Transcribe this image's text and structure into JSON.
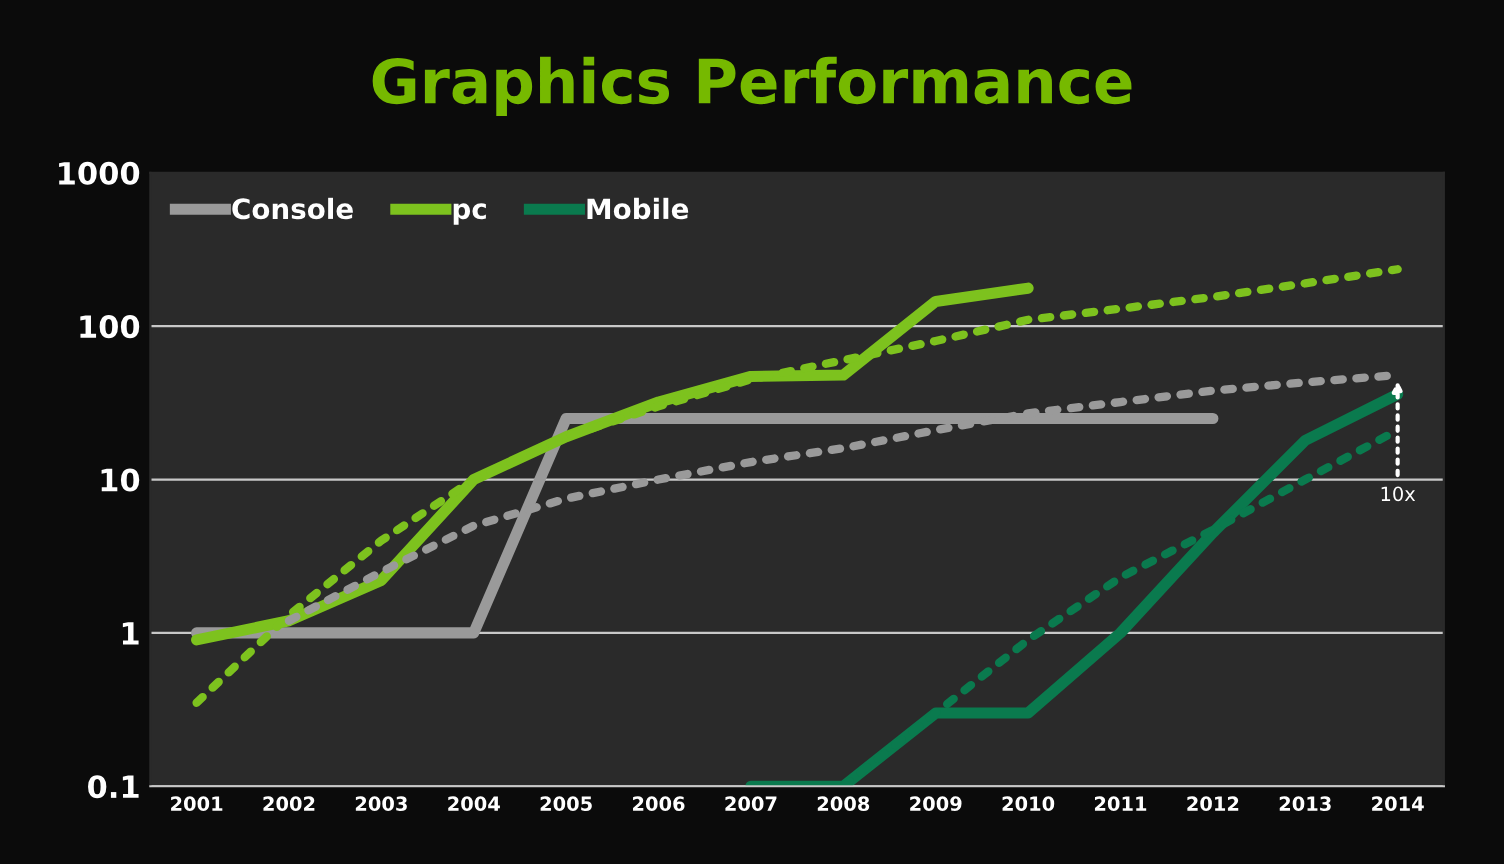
{
  "chart_data": {
    "type": "line",
    "title": "Graphics Performance",
    "categories": [
      "2001",
      "2002",
      "2003",
      "2004",
      "2005",
      "2006",
      "2007",
      "2008",
      "2009",
      "2010",
      "2011",
      "2012",
      "2013",
      "2014"
    ],
    "series": [
      {
        "name": "Console",
        "color": "#9a9a9a",
        "values": [
          1,
          1,
          1,
          1,
          25,
          25,
          25,
          25,
          25,
          25,
          25,
          25,
          null,
          null
        ]
      },
      {
        "name": "pc",
        "color": "#7dc21e",
        "values": [
          0.9,
          1.2,
          2.2,
          10,
          19,
          32,
          47,
          48,
          145,
          177,
          null,
          null,
          null,
          null
        ]
      },
      {
        "name": "Mobile",
        "color": "#0a7a4e",
        "values": [
          null,
          null,
          null,
          null,
          null,
          null,
          0.1,
          0.1,
          0.3,
          0.3,
          1,
          4.5,
          18,
          36
        ]
      },
      {
        "color": "#7dc21e",
        "line_style": "dotted",
        "values": [
          0.35,
          1.3,
          4,
          10,
          19,
          30,
          45,
          60,
          80,
          110,
          130,
          155,
          190,
          235
        ]
      },
      {
        "color": "#9a9a9a",
        "line_style": "dotted",
        "values": [
          null,
          1.2,
          2.5,
          5,
          7.5,
          10,
          13,
          16,
          21,
          27,
          32,
          38,
          43,
          48
        ]
      },
      {
        "color": "#0a7a4e",
        "line_style": "dotted",
        "values": [
          null,
          null,
          null,
          null,
          null,
          null,
          null,
          0.1,
          0.3,
          0.9,
          2.3,
          4.7,
          10,
          21
        ]
      }
    ],
    "ylim": [
      0.1,
      1000
    ],
    "yticks": [
      0.1,
      1,
      10,
      100,
      1000
    ],
    "log": true,
    "grid": "y",
    "legend": "top left",
    "marker": "none",
    "line_style": "solid",
    "annotations": [
      {
        "text": "10x",
        "x": "2014",
        "y": 48
      }
    ]
  }
}
